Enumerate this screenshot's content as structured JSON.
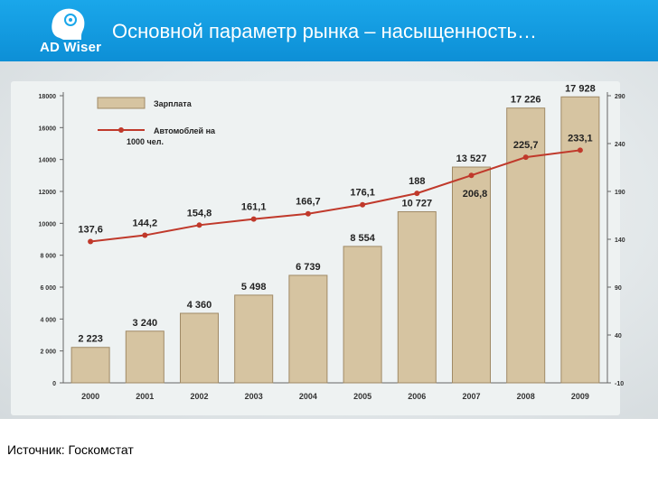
{
  "header": {
    "logo_text": "AD Wiser",
    "title": "Основной параметр рынка – насыщенность…",
    "bg_color": "#1aa7ea"
  },
  "footer": {
    "source": "Источник: Госкомстат"
  },
  "chart_data": {
    "type": "bar",
    "categories": [
      "2000",
      "2001",
      "2002",
      "2003",
      "2004",
      "2005",
      "2006",
      "2007",
      "2008",
      "2009"
    ],
    "series": [
      {
        "name": "Зарплата",
        "kind": "bar",
        "axis": "left",
        "values": [
          2223,
          3240,
          4360,
          5498,
          6739,
          8554,
          10727,
          13527,
          17226,
          17928
        ],
        "labels": [
          "2 223",
          "3 240",
          "4 360",
          "5 498",
          "6 739",
          "8 554",
          "10 727",
          "13 527",
          "17 226",
          "17 928"
        ],
        "color": "#d6c4a1"
      },
      {
        "name": "Автомоблей на 1000 чел.",
        "kind": "line",
        "axis": "right",
        "values": [
          137.6,
          144.2,
          154.8,
          161.1,
          166.7,
          176.1,
          188,
          206.8,
          225.7,
          233.1
        ],
        "labels": [
          "137,6",
          "144,2",
          "154,8",
          "161,1",
          "166,7",
          "176,1",
          "188",
          "206,8",
          "225,7",
          "233,1"
        ],
        "color": "#c0392b"
      }
    ],
    "left_axis": {
      "ylim": [
        0,
        18000
      ],
      "ticks": [
        0,
        2000,
        4000,
        6000,
        8000,
        10000,
        12000,
        14000,
        16000,
        18000
      ],
      "tick_labels": [
        "0",
        "2 000",
        "4 000",
        "6 000",
        "8 000",
        "10000",
        "12000",
        "14000",
        "16000",
        "18000"
      ]
    },
    "right_axis": {
      "ylim": [
        -10,
        290
      ],
      "ticks": [
        -10,
        40,
        90,
        140,
        190,
        240,
        290
      ],
      "tick_labels": [
        "-10",
        "40",
        "90",
        "140",
        "190",
        "240",
        "290"
      ]
    },
    "legend": [
      {
        "label": "Зарплата",
        "kind": "bar"
      },
      {
        "label": "Автомоблей на 1000 чел.",
        "kind": "line"
      }
    ],
    "legend_position": "top-left",
    "grid": false
  }
}
